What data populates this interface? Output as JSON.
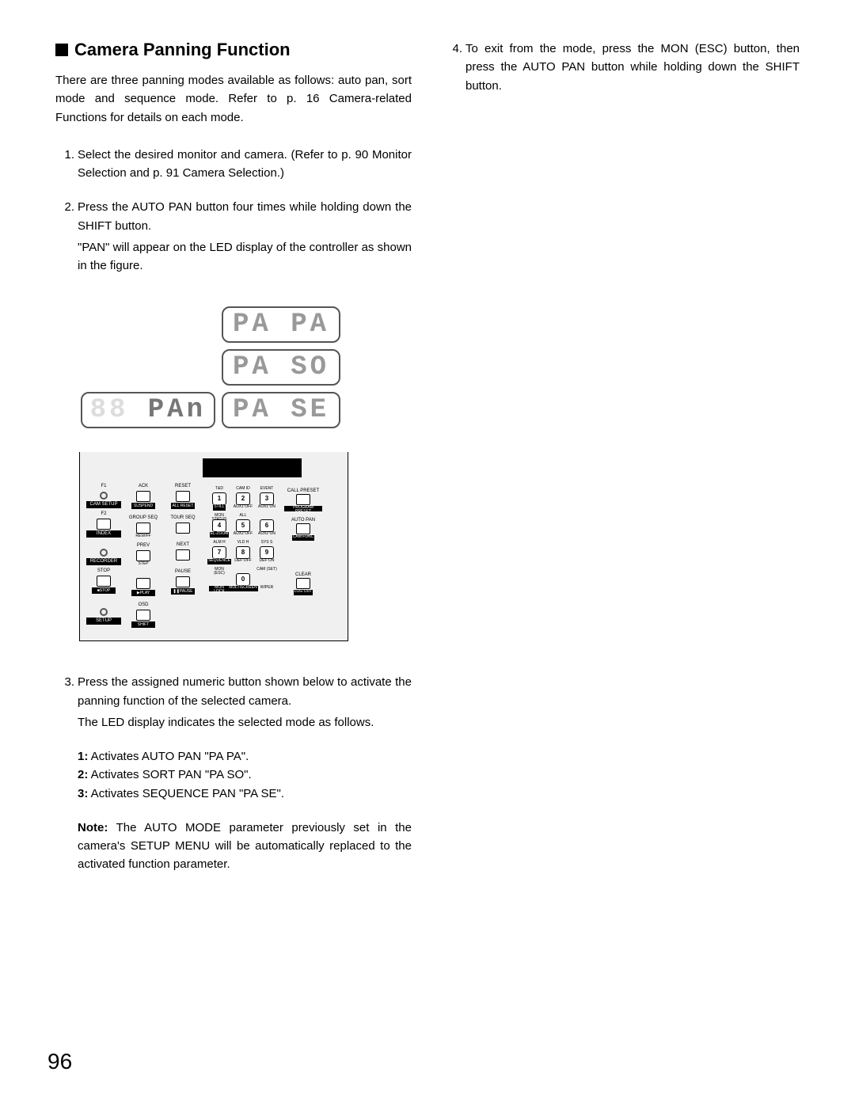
{
  "title": "Camera Panning Function",
  "intro": "There are three panning modes available as follows: auto pan, sort mode and sequence mode. Refer to p. 16 Camera-related Functions for details on each mode.",
  "steps_left": [
    {
      "n": "1.",
      "text": "Select the desired monitor and camera. (Refer to p. 90 Monitor Selection and p. 91 Camera Selection.)"
    },
    {
      "n": "2.",
      "text": "Press the AUTO PAN button four times while holding down the SHIFT button.",
      "extra": "\"PAN\" will appear on the LED display of the controller as shown in the figure."
    },
    {
      "n": "3.",
      "text": "Press the assigned numeric button shown below to activate the panning function of the selected camera.",
      "extra": "The LED display indicates the selected mode as follows."
    }
  ],
  "modes": [
    {
      "k": "1:",
      "v": " Activates AUTO PAN \"PA PA\"."
    },
    {
      "k": "2:",
      "v": " Activates SORT PAN \"PA SO\"."
    },
    {
      "k": "3:",
      "v": " Activates SEQUENCE PAN \"PA SE\"."
    }
  ],
  "note_label": "Note:",
  "note_text": " The AUTO MODE parameter previously set in the camera's SETUP MENU will be automatically replaced to the activated function parameter.",
  "steps_right": [
    {
      "n": "4.",
      "text": "To exit from the mode, press the MON (ESC) button, then press the AUTO PAN button while holding down the SHIFT button."
    }
  ],
  "led": {
    "pan": "  PAn",
    "papa": "PA PA",
    "paso": "PA SO",
    "pase": "PA SE"
  },
  "controller": {
    "row1": {
      "f1": "F1",
      "ack": "ACK",
      "reset": "RESET"
    },
    "row1b": {
      "camsetup": "CAM SETUP",
      "suspend": "SUSPEND",
      "allreset": "ALL RESET"
    },
    "row2": {
      "f2": "F2",
      "groupseq": "GROUP SEQ",
      "tourseq": "TOUR SEQ"
    },
    "row2b": {
      "index": "INDEX",
      "rewff": "REW/FF"
    },
    "row3": {
      "prev": "PREV",
      "next": "NEXT"
    },
    "row3b": {
      "recorder": "RECORDER",
      "step": "STEP"
    },
    "row4": {
      "stop": "STOP",
      "pause": "PAUSE"
    },
    "row4b": {
      "stop2": "■STOP",
      "play": "▶PLAY",
      "pause2": "❚❚PAUSE"
    },
    "row5": {
      "osd": "OSD"
    },
    "row5b": {
      "setup": "SETUP",
      "shift": "SHIFT"
    },
    "numpad": {
      "tops": [
        "T&D",
        "CAM ID",
        "EVENT",
        "MON STATUS",
        "ALL",
        "",
        "ALM H",
        "VLD H",
        "SYS S",
        "MON (ESC)",
        "",
        "CAM (SET)"
      ],
      "nums": [
        "1",
        "2",
        "3",
        "4",
        "5",
        "6",
        "7",
        "8",
        "9",
        "",
        "0",
        ""
      ],
      "bottoms": [
        "STILL",
        "AUX1 OFF",
        "AUX1 ON",
        "EL-ZOOM",
        "AUX2 OFF",
        "AUX2 ON",
        "SEQUENCE",
        "DEF OFF",
        "DEF ON",
        "MON LOCK",
        "MULTISCREEN",
        "WIPER"
      ]
    },
    "col5": {
      "callpreset": "CALL PRESET",
      "programpreset": "PROGRAM PRESET",
      "autopan": "AUTO PAN",
      "camfunc": "CAM FUNC",
      "clear": "CLEAR",
      "logout": "LOG OUT"
    }
  },
  "page": "96"
}
